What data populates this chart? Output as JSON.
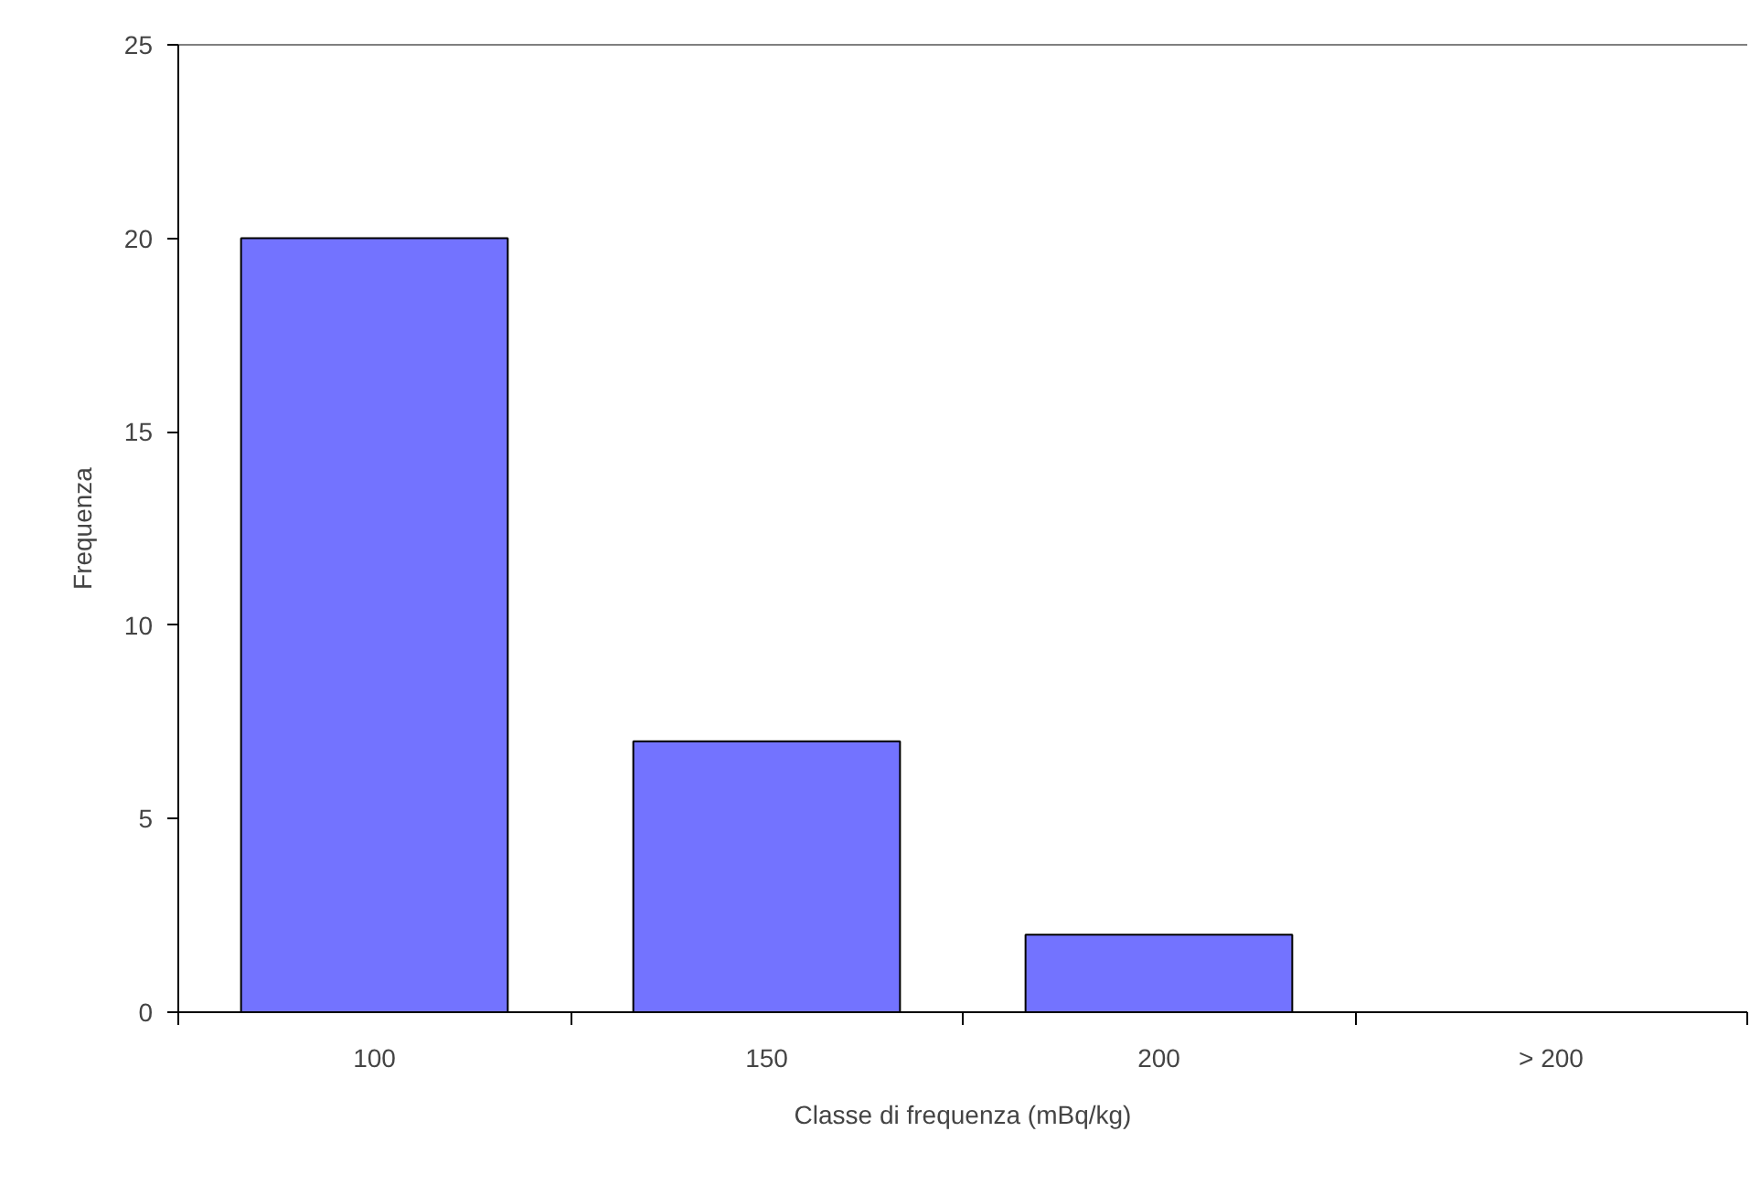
{
  "chart_data": {
    "type": "bar",
    "xlabel": "Classe di frequenza (mBq/kg)",
    "ylabel": "Frequenza",
    "categories": [
      "100",
      "150",
      "200",
      "> 200"
    ],
    "values": [
      20,
      7,
      2,
      0
    ],
    "color": "#7373ff",
    "ylim": [
      0,
      25
    ],
    "yticks": [
      0,
      5,
      10,
      15,
      20,
      25
    ],
    "grid": false
  }
}
